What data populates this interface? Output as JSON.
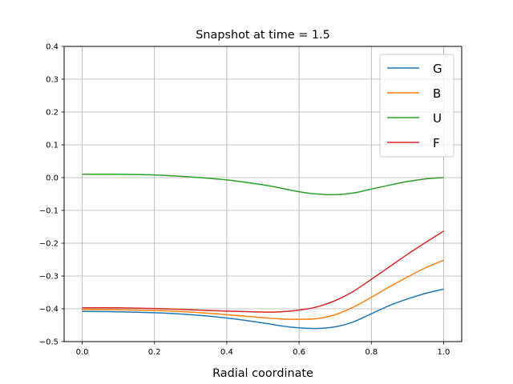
{
  "chart_data": {
    "type": "line",
    "title": "Snapshot at time = 1.5",
    "xlabel": "Radial coordinate",
    "ylabel": "",
    "xlim": [
      -0.05,
      1.05
    ],
    "ylim": [
      -0.5,
      0.4
    ],
    "xticks": [
      "0.0",
      "0.2",
      "0.4",
      "0.6",
      "0.8",
      "1.0"
    ],
    "xtick_values": [
      0.0,
      0.2,
      0.4,
      0.6,
      0.8,
      1.0
    ],
    "yticks": [
      "0.4",
      "0.3",
      "0.2",
      "0.1",
      "0.0",
      "−0.1",
      "−0.2",
      "−0.3",
      "−0.4",
      "−0.5"
    ],
    "ytick_values": [
      0.4,
      0.3,
      0.2,
      0.1,
      0.0,
      -0.1,
      -0.2,
      -0.3,
      -0.4,
      -0.5
    ],
    "grid": true,
    "legend_position": "top-right",
    "x": [
      0.0,
      0.1,
      0.2,
      0.3,
      0.4,
      0.5,
      0.55,
      0.6,
      0.65,
      0.7,
      0.75,
      0.8,
      0.85,
      0.9,
      0.95,
      1.0
    ],
    "series": [
      {
        "name": "G",
        "color": "#1f77b4",
        "values": [
          -0.408,
          -0.409,
          -0.412,
          -0.418,
          -0.428,
          -0.443,
          -0.452,
          -0.458,
          -0.46,
          -0.455,
          -0.44,
          -0.415,
          -0.39,
          -0.37,
          -0.353,
          -0.34
        ]
      },
      {
        "name": "B",
        "color": "#ff7f0e",
        "values": [
          -0.402,
          -0.403,
          -0.405,
          -0.41,
          -0.418,
          -0.427,
          -0.431,
          -0.432,
          -0.43,
          -0.418,
          -0.395,
          -0.365,
          -0.333,
          -0.303,
          -0.275,
          -0.252
        ]
      },
      {
        "name": "U",
        "color": "#2ca02c",
        "values": [
          0.01,
          0.01,
          0.008,
          0.002,
          -0.007,
          -0.022,
          -0.032,
          -0.043,
          -0.05,
          -0.052,
          -0.047,
          -0.035,
          -0.023,
          -0.012,
          -0.004,
          0.0
        ]
      },
      {
        "name": "F",
        "color": "#d62728",
        "values": [
          -0.397,
          -0.397,
          -0.399,
          -0.403,
          -0.407,
          -0.41,
          -0.409,
          -0.404,
          -0.394,
          -0.375,
          -0.347,
          -0.31,
          -0.272,
          -0.234,
          -0.198,
          -0.163
        ]
      }
    ]
  }
}
